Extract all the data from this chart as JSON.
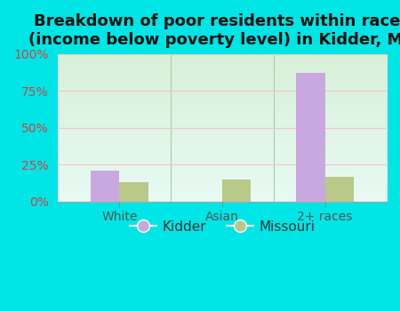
{
  "title": "Breakdown of poor residents within races\n(income below poverty level) in Kidder, MO",
  "categories": [
    "White",
    "Asian",
    "2+ races"
  ],
  "kidder_values": [
    21.0,
    0.0,
    87.0
  ],
  "missouri_values": [
    13.0,
    15.0,
    17.0
  ],
  "kidder_color": "#c9a8e0",
  "missouri_color": "#b8c98a",
  "bg_color": "#00e5e5",
  "plot_bg_top": "#d8f0d8",
  "plot_bg_bottom": "#e8faf4",
  "grid_color": "#f0c8c8",
  "ylim": [
    0,
    100
  ],
  "yticks": [
    0,
    25,
    50,
    75,
    100
  ],
  "ytick_labels": [
    "0%",
    "25%",
    "50%",
    "75%",
    "100%"
  ],
  "bar_width": 0.28,
  "title_fontsize": 13,
  "tick_fontsize": 10,
  "legend_fontsize": 11,
  "separator_color": "#aaccaa",
  "ytick_color": "#cc4444",
  "xtick_color": "#555555"
}
